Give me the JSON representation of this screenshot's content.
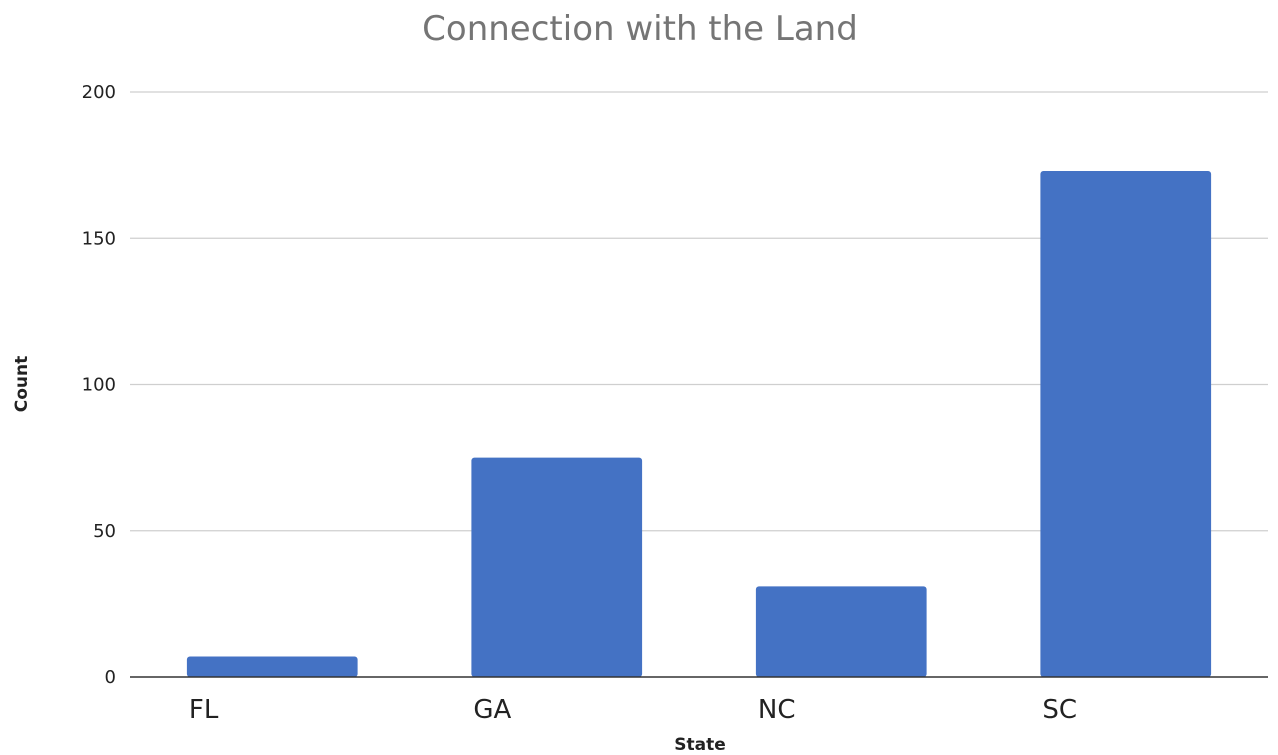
{
  "chart_data": {
    "type": "bar",
    "title": "Connection with the Land",
    "xlabel": "State",
    "ylabel": "Count",
    "categories": [
      "FL",
      "GA",
      "NC",
      "SC"
    ],
    "values": [
      7,
      75,
      31,
      173
    ],
    "ylim": [
      0,
      200
    ],
    "yticks": [
      0,
      50,
      100,
      150,
      200
    ],
    "ytick_labels": [
      "0",
      "50",
      "100",
      "150",
      "200"
    ],
    "grid": true,
    "legend": "none",
    "bar_color": "#4472C4"
  }
}
